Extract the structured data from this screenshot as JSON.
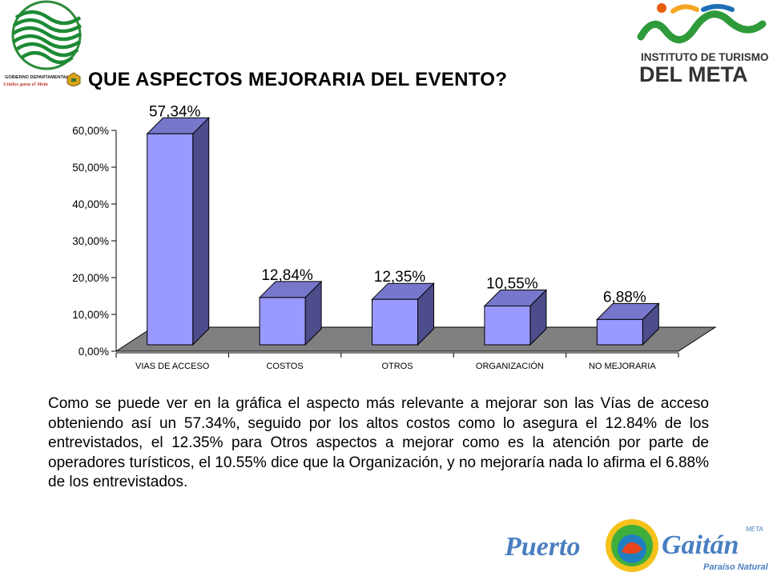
{
  "header": {
    "title": "QUE ASPECTOS MEJORARIA DEL EVENTO?",
    "gobierno_logo_text": [
      "GOBIERNO DEPARTAMENTAL",
      "Unidos gana el Meta"
    ],
    "turismo_logo_text": [
      "INSTITUTO DE TURISMO",
      "DEL META"
    ]
  },
  "chart_data": {
    "type": "bar",
    "style": "3d-column",
    "categories": [
      "VIAS DE ACCESO",
      "COSTOS",
      "OTROS",
      "ORGANIZACIÓN",
      "NO MEJORARIA"
    ],
    "values": [
      57.34,
      12.84,
      12.35,
      10.55,
      6.88
    ],
    "data_labels": [
      "57,34%",
      "12,84%",
      "12,35%",
      "10,55%",
      "6,88%"
    ],
    "yticks": [
      "0,00%",
      "10,00%",
      "20,00%",
      "30,00%",
      "40,00%",
      "50,00%",
      "60,00%"
    ],
    "ylim": [
      0,
      60
    ],
    "grid": false,
    "legend": "none",
    "colors": {
      "front": "#9999FF",
      "side": "#4D4D8C",
      "top": "#7777CC",
      "floor": "#808080"
    }
  },
  "description": "Como se puede  ver en la gráfica el aspecto más relevante a mejorar  son las Vías de acceso obteniendo así un 57.34%,  seguido por los altos costos como lo asegura  el 12.84% de los entrevistados, el 12.35% para Otros aspectos a mejorar como es la atención por parte de operadores turísticos, el 10.55% dice que la Organización, y no mejoraría nada lo afirma el 6.88% de los entrevistados.",
  "footer": {
    "gaitan_logo_text": [
      "Puerto",
      "Gaitán",
      "META",
      "Paraíso Natural"
    ]
  }
}
